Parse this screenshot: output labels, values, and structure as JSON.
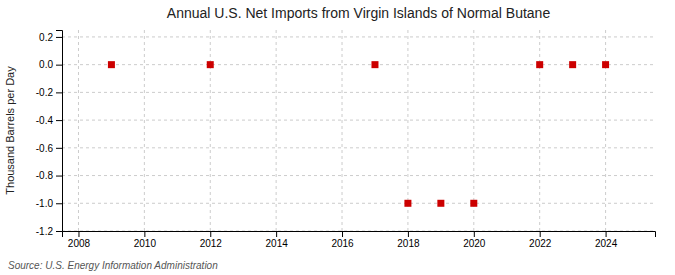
{
  "chart_data": {
    "type": "scatter",
    "title": "Annual U.S. Net Imports from Virgin Islands of Normal Butane",
    "y_label": "Thousand Barrels per Day",
    "source": "Source: U.S. Energy Information Administration",
    "x": [
      2009,
      2012,
      2017,
      2018,
      2019,
      2020,
      2022,
      2023,
      2024
    ],
    "values": [
      0,
      0,
      0,
      -1,
      -1,
      -1,
      0,
      0,
      0
    ],
    "color": "#CC0000",
    "marker": "square",
    "xlim": [
      2007.5,
      2025.5
    ],
    "ylim": [
      -1.2,
      0.25
    ],
    "xticks": [
      2008,
      2010,
      2012,
      2014,
      2016,
      2018,
      2020,
      2022,
      2024
    ],
    "yticks": [
      0.2,
      {
        "value": 0.0,
        "label": "0.0"
      },
      -0.2,
      -0.4,
      -0.6,
      -0.8,
      {
        "value": -1.0,
        "label": "-1.0"
      },
      -1.2
    ],
    "grid": true
  }
}
